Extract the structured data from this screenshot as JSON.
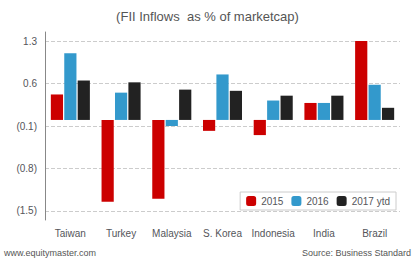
{
  "chart_data": {
    "type": "bar",
    "title": "(FII Inflows  as % of marketcap)",
    "categories": [
      "Taiwan",
      "Turkey",
      "Malaysia",
      "S. Korea",
      "Indonesia",
      "India",
      "Brazil"
    ],
    "series": [
      {
        "name": "2015",
        "color": "#cc0000",
        "values": [
          0.42,
          -1.35,
          -1.3,
          -0.18,
          -0.25,
          0.28,
          1.3
        ]
      },
      {
        "name": "2016",
        "color": "#3399cc",
        "values": [
          1.1,
          0.45,
          -0.1,
          0.75,
          0.32,
          0.28,
          0.58
        ]
      },
      {
        "name": "2017 ytd",
        "color": "#222222",
        "values": [
          0.65,
          0.62,
          0.5,
          0.48,
          0.4,
          0.4,
          0.2
        ]
      }
    ],
    "ylim": [
      -1.65,
      1.45
    ],
    "yticks": [
      {
        "value": -1.5,
        "label": "(1.5)"
      },
      {
        "value": -0.8,
        "label": "(0.8)"
      },
      {
        "value": -0.1,
        "label": "(0.1)"
      },
      0.6,
      1.3
    ],
    "grid": true,
    "legend": "lower right",
    "annotations": [
      "www.equitymaster.com",
      "Source: Business Standard"
    ]
  }
}
